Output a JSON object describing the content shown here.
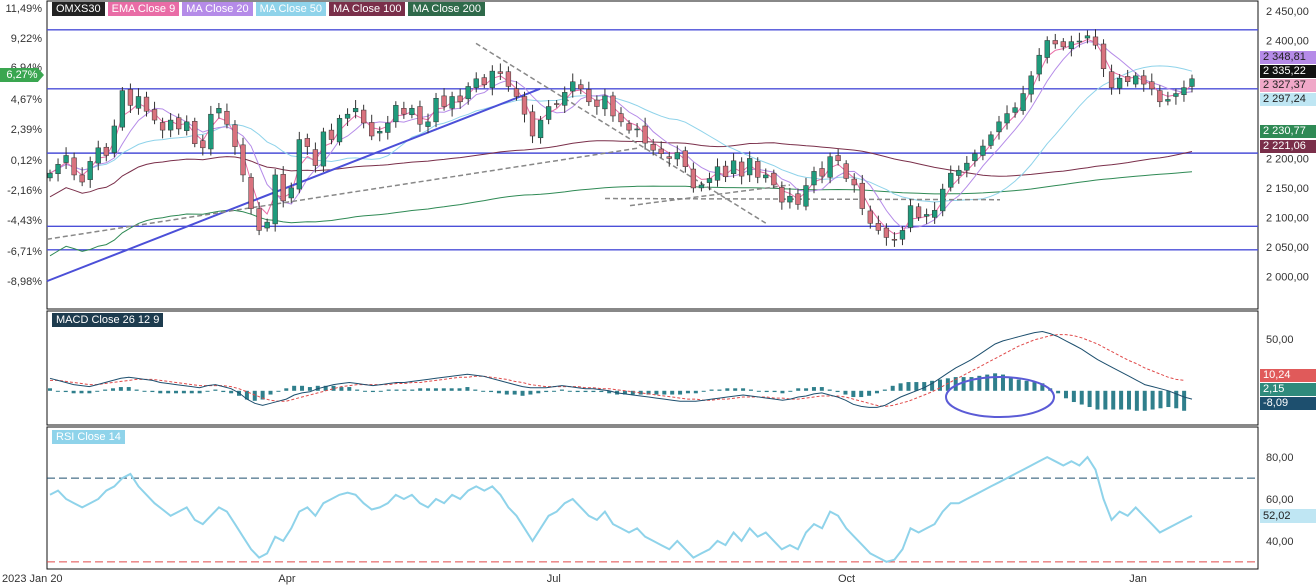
{
  "colors": {
    "up": "#1f9b7c",
    "down": "#d9727e",
    "ema9": "#e96ca6",
    "ma20": "#b58be8",
    "ma50": "#8fd3ea",
    "ma100": "#7a2f4a",
    "ma200": "#2f8a55",
    "blue_line": "#4b4fd8",
    "macd_line": "#1d4f6e",
    "signal_line": "#e04b4b",
    "macd_hist": "#2f7f8c",
    "rsi": "#8fd3ea",
    "pct_tag": "#3aa650"
  },
  "price_panel": {
    "legend": [
      {
        "label": "OMXS30",
        "bg": "#222222",
        "fg": "#ffffff"
      },
      {
        "label": "EMA Close 9",
        "bg": "#e96ca6",
        "fg": "#ffffff"
      },
      {
        "label": "MA Close 20",
        "bg": "#b58be8",
        "fg": "#ffffff"
      },
      {
        "label": "MA Close 50",
        "bg": "#8fd3ea",
        "fg": "#ffffff"
      },
      {
        "label": "MA Close 100",
        "bg": "#7a2f4a",
        "fg": "#ffffff"
      },
      {
        "label": "MA Close 200",
        "bg": "#2f6a4a",
        "fg": "#ffffff"
      }
    ],
    "right_axis": [
      "2 450,00",
      "2 400,00",
      "2 350,00",
      "2 300,00",
      "2 250,00",
      "2 200,00",
      "2 150,00",
      "2 100,00",
      "2 050,00",
      "2 000,00"
    ],
    "left_axis": [
      "11,49%",
      "9,22%",
      "6,94%",
      "4,67%",
      "2,39%",
      "0,12%",
      "-2,16%",
      "-4,43%",
      "-6,71%",
      "-8,98%"
    ],
    "pct_tag": "6,27%",
    "value_tags": [
      {
        "label": "2 348,81",
        "bg": "#b58be8",
        "fg": "#222"
      },
      {
        "label": "2 335,22",
        "bg": "#111111",
        "fg": "#ffffff"
      },
      {
        "label": "2 327,37",
        "bg": "#f0a8c8",
        "fg": "#222"
      },
      {
        "label": "2 297,24",
        "bg": "#bfe6f3",
        "fg": "#222"
      },
      {
        "label": "2 230,77",
        "bg": "#2f8a55",
        "fg": "#ffffff"
      },
      {
        "label": "2 221,06",
        "bg": "#7a2f4a",
        "fg": "#ffffff"
      }
    ]
  },
  "macd_panel": {
    "legend": "MACD Close 26 12 9",
    "right_axis": [
      "50,00"
    ],
    "value_tags": [
      {
        "label": "10,24",
        "bg": "#e05a5a",
        "fg": "#ffffff"
      },
      {
        "label": "2,15",
        "bg": "#2f8a7c",
        "fg": "#ffffff"
      },
      {
        "label": "-8,09",
        "bg": "#1d4f6e",
        "fg": "#ffffff"
      }
    ]
  },
  "rsi_panel": {
    "legend": "RSI Close 14",
    "right_axis": [
      "80,00",
      "60,00",
      "40,00"
    ],
    "value_tag": "52,02"
  },
  "x_axis": [
    "2023 Jan 20",
    "Apr",
    "Jul",
    "Oct",
    "Jan"
  ],
  "chart_data": [
    {
      "type": "candlestick",
      "title": "OMXS30",
      "ylim": [
        1960,
        2455
      ],
      "horizontal_levels": [
        2418,
        2318,
        2209,
        2085,
        2045
      ],
      "close": [
        2175,
        2190,
        2205,
        2172,
        2160,
        2195,
        2218,
        2205,
        2255,
        2315,
        2290,
        2305,
        2280,
        2265,
        2248,
        2265,
        2250,
        2262,
        2225,
        2218,
        2275,
        2285,
        2258,
        2220,
        2172,
        2115,
        2078,
        2092,
        2172,
        2128,
        2150,
        2232,
        2220,
        2188,
        2245,
        2232,
        2268,
        2275,
        2285,
        2260,
        2238,
        2246,
        2260,
        2290,
        2275,
        2285,
        2258,
        2262,
        2302,
        2288,
        2305,
        2296,
        2322,
        2335,
        2325,
        2348,
        2344,
        2322,
        2305,
        2275,
        2238,
        2265,
        2288,
        2292,
        2312,
        2330,
        2318,
        2296,
        2288,
        2306,
        2272,
        2262,
        2248,
        2250,
        2226,
        2214,
        2208,
        2200,
        2210,
        2186,
        2150,
        2155,
        2166,
        2186,
        2169,
        2196,
        2170,
        2200,
        2168,
        2172,
        2155,
        2126,
        2136,
        2122,
        2154,
        2178,
        2170,
        2203,
        2196,
        2166,
        2155,
        2115,
        2090,
        2078,
        2066,
        2062,
        2078,
        2120,
        2100,
        2105,
        2112,
        2148,
        2175,
        2180,
        2192,
        2208,
        2221,
        2240,
        2262,
        2276,
        2286,
        2310,
        2340,
        2375,
        2400,
        2394,
        2389,
        2398,
        2399,
        2408,
        2392,
        2352,
        2320,
        2336,
        2330,
        2340,
        2326,
        2318,
        2296,
        2300,
        2310,
        2320,
        2335
      ]
    },
    {
      "type": "line",
      "title": "MACD Close 26 12 9",
      "ylim": [
        -30,
        70
      ],
      "values": [
        12,
        10,
        8,
        6,
        5,
        4,
        6,
        8,
        10,
        12,
        13,
        12,
        11,
        10,
        8,
        7,
        6,
        5,
        4,
        3,
        5,
        6,
        4,
        2,
        -2,
        -8,
        -12,
        -14,
        -12,
        -10,
        -8,
        -4,
        -2,
        -1,
        2,
        4,
        6,
        7,
        8,
        7,
        6,
        5,
        6,
        7,
        8,
        8,
        9,
        10,
        11,
        12,
        13,
        14,
        15,
        16,
        15,
        14,
        12,
        10,
        8,
        6,
        4,
        3,
        3,
        3,
        4,
        5,
        4,
        3,
        2,
        2,
        1,
        0,
        -2,
        -3,
        -4,
        -5,
        -6,
        -7,
        -8,
        -9,
        -10,
        -10,
        -10,
        -9,
        -8,
        -7,
        -6,
        -5,
        -4,
        -5,
        -6,
        -7,
        -8,
        -9,
        -8,
        -6,
        -5,
        -3,
        -2,
        -4,
        -6,
        -9,
        -13,
        -15,
        -16,
        -16,
        -14,
        -10,
        -6,
        -3,
        0,
        3,
        7,
        12,
        17,
        22,
        26,
        30,
        35,
        40,
        45,
        48,
        50,
        52,
        54,
        56,
        57,
        55,
        52,
        48,
        44,
        40,
        35,
        30,
        26,
        22,
        18,
        14,
        10,
        6,
        4,
        2,
        0,
        -3,
        -6,
        -8
      ],
      "signal": [
        10,
        10,
        9,
        8,
        7,
        6,
        6,
        7,
        8,
        9,
        10,
        11,
        11,
        11,
        10,
        9,
        8,
        7,
        6,
        5,
        5,
        5,
        5,
        4,
        2,
        -1,
        -4,
        -7,
        -9,
        -10,
        -10,
        -8,
        -6,
        -4,
        -2,
        0,
        2,
        4,
        5,
        6,
        6,
        6,
        6,
        6,
        7,
        7,
        8,
        8,
        9,
        10,
        11,
        12,
        13,
        13,
        14,
        14,
        13,
        12,
        11,
        9,
        8,
        6,
        5,
        4,
        4,
        4,
        4,
        4,
        3,
        3,
        2,
        2,
        1,
        0,
        -1,
        -2,
        -3,
        -4,
        -5,
        -6,
        -7,
        -8,
        -8,
        -9,
        -9,
        -8,
        -8,
        -7,
        -6,
        -6,
        -6,
        -6,
        -7,
        -7,
        -8,
        -8,
        -7,
        -6,
        -5,
        -5,
        -5,
        -6,
        -8,
        -10,
        -12,
        -14,
        -15,
        -14,
        -12,
        -10,
        -7,
        -4,
        -1,
        3,
        7,
        11,
        15,
        19,
        23,
        27,
        31,
        35,
        39,
        43,
        46,
        49,
        51,
        53,
        54,
        54,
        53,
        51,
        48,
        45,
        41,
        37,
        33,
        29,
        26,
        22,
        19,
        16,
        13,
        11,
        10
      ]
    },
    {
      "type": "line",
      "title": "RSI Close 14",
      "ylim": [
        28,
        92
      ],
      "levels": [
        70,
        30
      ],
      "values": [
        62,
        64,
        60,
        58,
        56,
        58,
        60,
        64,
        66,
        70,
        72,
        66,
        62,
        58,
        55,
        52,
        54,
        56,
        50,
        48,
        52,
        56,
        54,
        48,
        42,
        36,
        32,
        34,
        42,
        40,
        46,
        54,
        56,
        52,
        58,
        60,
        62,
        63,
        62,
        58,
        55,
        56,
        58,
        62,
        60,
        62,
        58,
        56,
        60,
        58,
        62,
        60,
        64,
        66,
        64,
        66,
        62,
        56,
        52,
        46,
        40,
        46,
        52,
        54,
        58,
        60,
        56,
        52,
        50,
        54,
        48,
        46,
        44,
        46,
        42,
        40,
        38,
        36,
        40,
        36,
        32,
        34,
        36,
        40,
        38,
        44,
        40,
        46,
        42,
        44,
        40,
        36,
        38,
        36,
        44,
        48,
        46,
        54,
        52,
        46,
        42,
        38,
        34,
        32,
        30,
        31,
        36,
        46,
        44,
        46,
        48,
        54,
        58,
        58,
        60,
        62,
        64,
        66,
        68,
        70,
        72,
        74,
        76,
        78,
        80,
        78,
        76,
        78,
        76,
        80,
        74,
        60,
        50,
        54,
        52,
        56,
        52,
        48,
        44,
        46,
        48,
        50,
        52
      ]
    }
  ]
}
